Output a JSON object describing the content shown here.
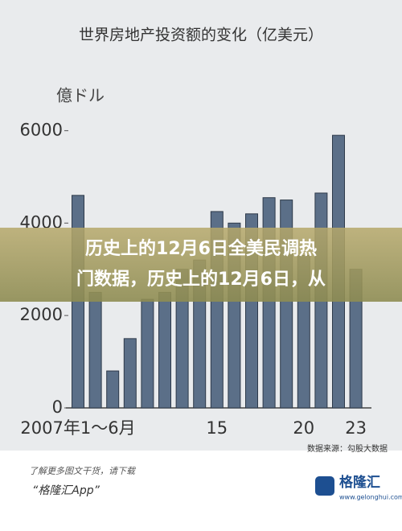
{
  "chart_data": {
    "type": "bar",
    "title": "世界房地产投资额的变化（亿美元）",
    "y_label": "億ドル",
    "source": "数据来源：勾股大数据",
    "categories": [
      "2007年1～6月",
      null,
      null,
      null,
      null,
      null,
      null,
      null,
      "15",
      null,
      null,
      null,
      null,
      "20",
      null,
      null,
      "23"
    ],
    "values": [
      4600,
      2500,
      800,
      1500,
      2350,
      2500,
      3000,
      3200,
      4250,
      4000,
      4200,
      4550,
      4500,
      3300,
      4650,
      5900,
      3000
    ],
    "color": "#5b6f88",
    "ylim": [
      0,
      7000
    ],
    "yticks": [
      0,
      2000,
      4000,
      6000
    ]
  },
  "overlay": {
    "headline_lines": [
      "历史上的12月6日全美民调热",
      "门数据，历史上的12月6日，从"
    ]
  },
  "footer": {
    "hint": "了解更多图文干货，请下载",
    "app": "“格隆汇App”",
    "brand": "格隆汇",
    "site": "www.gelonghui.com"
  }
}
